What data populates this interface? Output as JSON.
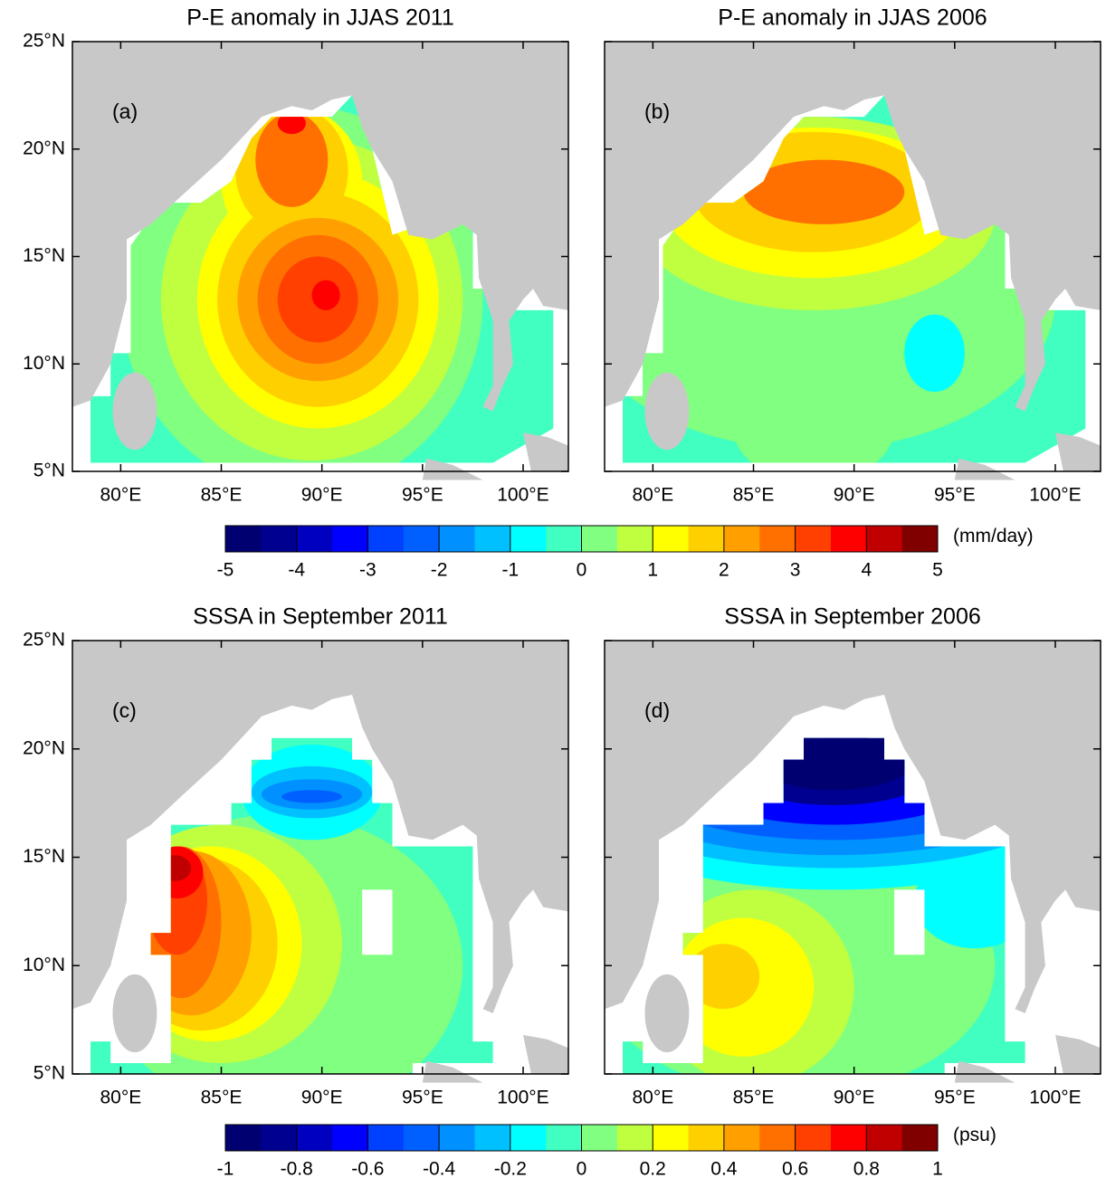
{
  "panels": [
    {
      "title": "P-E anomaly in JJAS 2011",
      "label": "(a)",
      "colorbar": 0,
      "xlim": [
        77.6,
        102.25
      ],
      "ylim": [
        5,
        25
      ],
      "xticks": [
        {
          "value": 80,
          "label": "80°E"
        },
        {
          "value": 85,
          "label": "85°E"
        },
        {
          "value": 90,
          "label": "90°E"
        },
        {
          "value": 95,
          "label": "95°E"
        },
        {
          "value": 100,
          "label": "100°E"
        }
      ],
      "yticks": [
        {
          "value": 5,
          "label": "5°N"
        },
        {
          "value": 10,
          "label": "10°N"
        },
        {
          "value": 15,
          "label": "15°N"
        },
        {
          "value": 20,
          "label": "20°N"
        },
        {
          "value": 25,
          "label": "25°N"
        }
      ],
      "background": -0.2,
      "features": [
        {
          "lon": 89,
          "lat": 13,
          "rx": 9,
          "ry": 9,
          "value": 0.3
        },
        {
          "lon": 89.5,
          "lat": 13,
          "rx": 7.5,
          "ry": 7.5,
          "value": 0.7
        },
        {
          "lon": 88.5,
          "lat": 18.5,
          "rx": 3.5,
          "ry": 3.5,
          "value": 1.2
        },
        {
          "lon": 89.8,
          "lat": 13,
          "rx": 6,
          "ry": 6,
          "value": 1.2
        },
        {
          "lon": 88.5,
          "lat": 19,
          "rx": 2.8,
          "ry": 3,
          "value": 1.7
        },
        {
          "lon": 89.8,
          "lat": 13,
          "rx": 5,
          "ry": 5,
          "value": 1.7
        },
        {
          "lon": 89.8,
          "lat": 13,
          "rx": 4,
          "ry": 3.8,
          "value": 2.2
        },
        {
          "lon": 88.5,
          "lat": 19.5,
          "rx": 1.8,
          "ry": 2.2,
          "value": 2.7
        },
        {
          "lon": 89.8,
          "lat": 13,
          "rx": 3,
          "ry": 3,
          "value": 2.7
        },
        {
          "lon": 89.8,
          "lat": 13,
          "rx": 2,
          "ry": 2,
          "value": 3.2
        },
        {
          "lon": 90.2,
          "lat": 13.2,
          "rx": 0.7,
          "ry": 0.7,
          "value": 3.7
        },
        {
          "lon": 88.5,
          "lat": 21.2,
          "rx": 0.7,
          "ry": 0.5,
          "value": 3.7
        }
      ]
    },
    {
      "title": "P-E anomaly in JJAS 2006",
      "label": "(b)",
      "colorbar": 0,
      "xlim": [
        77.6,
        102.25
      ],
      "ylim": [
        5,
        25
      ],
      "xticks": [
        {
          "value": 80,
          "label": "80°E"
        },
        {
          "value": 85,
          "label": "85°E"
        },
        {
          "value": 90,
          "label": "90°E"
        },
        {
          "value": 95,
          "label": "95°E"
        },
        {
          "value": 100,
          "label": "100°E"
        }
      ],
      "yticks": [
        5,
        10,
        15,
        20,
        25
      ],
      "background": -0.2,
      "features": [
        {
          "lon": 88,
          "lat": 13,
          "rx": 12,
          "ry": 7,
          "value": 0.3
        },
        {
          "lon": 88,
          "lat": 7,
          "rx": 4,
          "ry": 2.5,
          "value": 0.3
        },
        {
          "lon": 88,
          "lat": 17,
          "rx": 9,
          "ry": 4.5,
          "value": 0.7
        },
        {
          "lon": 88,
          "lat": 17.5,
          "rx": 7.5,
          "ry": 3.5,
          "value": 1.2
        },
        {
          "lon": 88,
          "lat": 18,
          "rx": 6,
          "ry": 2.8,
          "value": 1.7
        },
        {
          "lon": 88.5,
          "lat": 18,
          "rx": 4,
          "ry": 1.5,
          "value": 2.7
        },
        {
          "lon": 94,
          "lat": 10.5,
          "rx": 1.5,
          "ry": 1.8,
          "value": -0.7
        }
      ]
    },
    {
      "title": "SSSA in September 2011",
      "label": "(c)",
      "colorbar": 1,
      "xlim": [
        77.6,
        102.25
      ],
      "ylim": [
        5,
        25
      ],
      "xticks": [
        {
          "value": 80,
          "label": "80°E"
        },
        {
          "value": 85,
          "label": "85°E"
        },
        {
          "value": 90,
          "label": "90°E"
        },
        {
          "value": 95,
          "label": "95°E"
        },
        {
          "value": 100,
          "label": "100°E"
        }
      ],
      "yticks": [
        {
          "value": 5,
          "label": "5°N"
        },
        {
          "value": 10,
          "label": "10°N"
        },
        {
          "value": 15,
          "label": "15°N"
        },
        {
          "value": 20,
          "label": "20°N"
        },
        {
          "value": 25,
          "label": "25°N"
        }
      ],
      "background": -0.05,
      "features": [
        {
          "lon": 88,
          "lat": 10,
          "rx": 9,
          "ry": 7,
          "value": 0.05
        },
        {
          "lon": 85,
          "lat": 11,
          "rx": 6,
          "ry": 5.5,
          "value": 0.15
        },
        {
          "lon": 84.5,
          "lat": 11,
          "rx": 4.5,
          "ry": 4.5,
          "value": 0.25
        },
        {
          "lon": 84,
          "lat": 11,
          "rx": 3.8,
          "ry": 4,
          "value": 0.35
        },
        {
          "lon": 83.5,
          "lat": 11.5,
          "rx": 3,
          "ry": 3.8,
          "value": 0.45
        },
        {
          "lon": 83,
          "lat": 12,
          "rx": 2,
          "ry": 3.5,
          "value": 0.55
        },
        {
          "lon": 82.8,
          "lat": 13,
          "rx": 1.5,
          "ry": 2.5,
          "value": 0.65
        },
        {
          "lon": 82.8,
          "lat": 14.3,
          "rx": 1.3,
          "ry": 1.2,
          "value": 0.75
        },
        {
          "lon": 82.7,
          "lat": 14.5,
          "rx": 0.8,
          "ry": 0.6,
          "value": 0.85
        },
        {
          "lon": 89.5,
          "lat": 18,
          "rx": 3.5,
          "ry": 2.2,
          "value": -0.15
        },
        {
          "lon": 89.5,
          "lat": 18,
          "rx": 3,
          "ry": 1.2,
          "value": -0.25
        },
        {
          "lon": 89.5,
          "lat": 17.9,
          "rx": 2.5,
          "ry": 0.7,
          "value": -0.35
        },
        {
          "lon": 89.5,
          "lat": 17.8,
          "rx": 1.5,
          "ry": 0.3,
          "value": -0.45
        }
      ]
    },
    {
      "title": "SSSA in September 2006",
      "label": "(d)",
      "colorbar": 1,
      "xlim": [
        77.6,
        102.25
      ],
      "ylim": [
        5,
        25
      ],
      "xticks": [
        {
          "value": 80,
          "label": "80°E"
        },
        {
          "value": 85,
          "label": "85°E"
        },
        {
          "value": 90,
          "label": "90°E"
        },
        {
          "value": 95,
          "label": "95°E"
        },
        {
          "value": 100,
          "label": "100°E"
        }
      ],
      "yticks": [
        5,
        10,
        15,
        20,
        25
      ],
      "background": -0.05,
      "features": [
        {
          "lon": 87,
          "lat": 10,
          "rx": 10,
          "ry": 6,
          "value": 0.05
        },
        {
          "lon": 85,
          "lat": 9,
          "rx": 5,
          "ry": 4.5,
          "value": 0.15
        },
        {
          "lon": 84.5,
          "lat": 9,
          "rx": 3.5,
          "ry": 3.2,
          "value": 0.25
        },
        {
          "lon": 83.5,
          "lat": 9.5,
          "rx": 1.8,
          "ry": 1.5,
          "value": 0.35
        },
        {
          "lon": 96,
          "lat": 13,
          "rx": 3,
          "ry": 2.2,
          "value": -0.15
        },
        {
          "lon": 89,
          "lat": 17,
          "rx": 12,
          "ry": 3.5,
          "value": -0.15
        },
        {
          "lon": 89,
          "lat": 17.3,
          "rx": 11,
          "ry": 2.8,
          "value": -0.25
        },
        {
          "lon": 89,
          "lat": 17.6,
          "rx": 10,
          "ry": 2.5,
          "value": -0.35
        },
        {
          "lon": 89,
          "lat": 18,
          "rx": 9,
          "ry": 2.2,
          "value": -0.5
        },
        {
          "lon": 89,
          "lat": 18.5,
          "rx": 7,
          "ry": 2,
          "value": -0.65
        },
        {
          "lon": 89,
          "lat": 19,
          "rx": 5,
          "ry": 1.6,
          "value": -0.85
        },
        {
          "lon": 89,
          "lat": 19.5,
          "rx": 4,
          "ry": 1.4,
          "value": -0.95
        }
      ]
    }
  ],
  "colorbars": [
    {
      "unit": "(mm/day)",
      "lim": [
        -5,
        5
      ],
      "ticks": [
        -5,
        -4,
        -3,
        -2,
        -1,
        0,
        1,
        2,
        3,
        4,
        5
      ],
      "colors": [
        "#000070",
        "#000090",
        "#0000c0",
        "#0000ff",
        "#0040ff",
        "#0060ff",
        "#0090ff",
        "#00c0ff",
        "#00ffff",
        "#40ffc0",
        "#80ff80",
        "#c0ff40",
        "#ffff00",
        "#ffd000",
        "#ffa000",
        "#ff7000",
        "#ff4000",
        "#ff0000",
        "#c00000",
        "#800000"
      ]
    },
    {
      "unit": "(psu)",
      "lim": [
        -1,
        1
      ],
      "ticks": [
        -1,
        -0.8,
        -0.6,
        -0.4,
        -0.2,
        0,
        0.2,
        0.4,
        0.6,
        0.8,
        1
      ],
      "colors": [
        "#000070",
        "#000090",
        "#0000c0",
        "#0000ff",
        "#0040ff",
        "#0060ff",
        "#0090ff",
        "#00c0ff",
        "#00ffff",
        "#40ffc0",
        "#80ff80",
        "#c0ff40",
        "#ffff00",
        "#ffd000",
        "#ffa000",
        "#ff7000",
        "#ff4000",
        "#ff0000",
        "#c00000",
        "#800000"
      ]
    }
  ]
}
